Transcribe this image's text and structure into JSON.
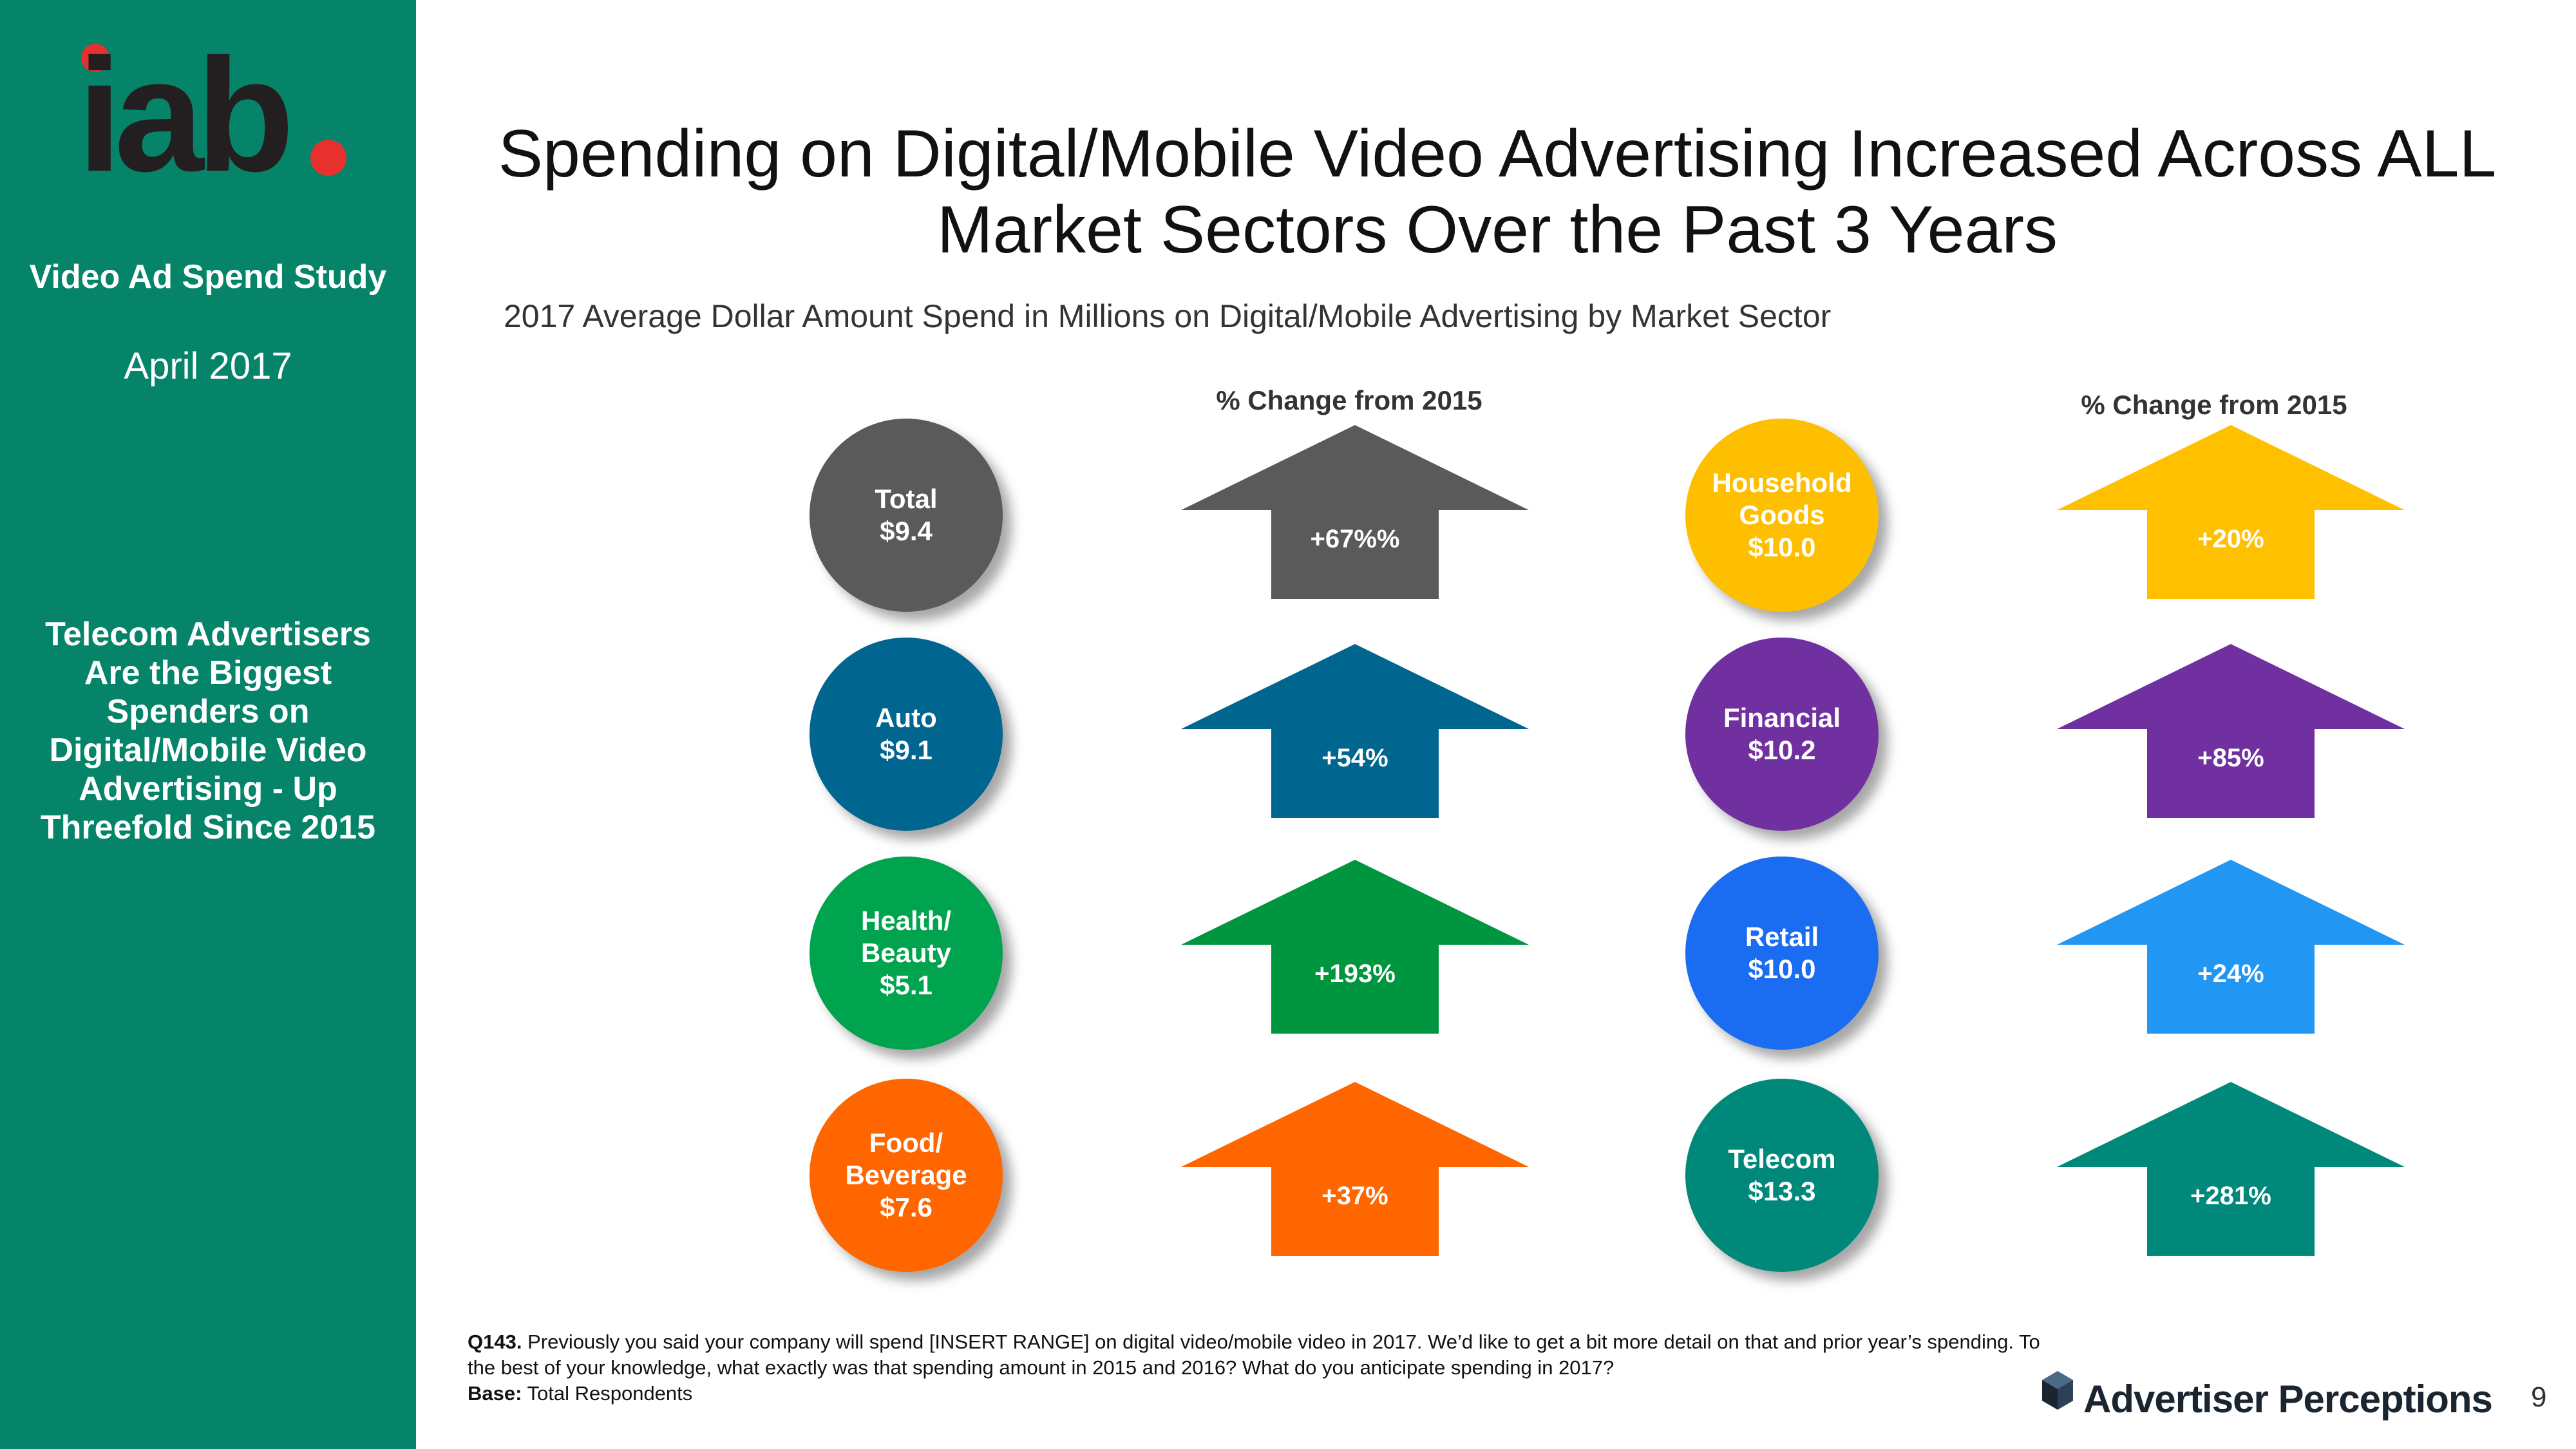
{
  "sidebar": {
    "logo_text": "iab.",
    "study": "Video Ad Spend Study",
    "date": "April 2017",
    "note": "Telecom Advertisers Are the Biggest Spenders on Digital/Mobile  Video Advertising - Up Threefold Since 2015"
  },
  "title": "Spending on Digital/Mobile Video Advertising Increased Across ALL Market Sectors Over the Past 3 Years",
  "chart_data": {
    "type": "table",
    "title": "Spending on Digital/Mobile Video Advertising Increased Across ALL Market Sectors Over the Past 3 Years",
    "subtitle": "2017 Average Dollar Amount Spend in Millions on Digital/Mobile Advertising by Market Sector",
    "change_header": "% Change from 2015",
    "sectors": [
      {
        "label": "Total\n$9.4",
        "name": "Total",
        "value": 9.4,
        "change_label": "+67%%",
        "change": 67,
        "color": "#5a5a5a"
      },
      {
        "label": "Auto\n$9.1",
        "name": "Auto",
        "value": 9.1,
        "change_label": "+54%",
        "change": 54,
        "color": "#00658f"
      },
      {
        "label": "Health/\nBeauty\n$5.1",
        "name": "Health/ Beauty",
        "value": 5.1,
        "change_label": "+193%",
        "change": 193,
        "color": "#00a44e"
      },
      {
        "label": "Food/\nBeverage\n$7.6",
        "name": "Food/ Beverage",
        "value": 7.6,
        "change_label": "+37%",
        "change": 37,
        "color": "#ff6600"
      },
      {
        "label": "Household\nGoods\n$10.0",
        "name": "Household Goods",
        "value": 10.0,
        "change_label": "+20%",
        "change": 20,
        "color": "#fdbf00"
      },
      {
        "label": "Financial\n$10.2",
        "name": "Financial",
        "value": 10.2,
        "change_label": "+85%",
        "change": 85,
        "color": "#7030a0"
      },
      {
        "label": "Retail\n$10.0",
        "name": "Retail",
        "value": 10.0,
        "change_label": "+24%",
        "change": 24,
        "color": "#1a6cf0"
      },
      {
        "label": "Telecom\n$13.3",
        "name": "Telecom",
        "value": 13.3,
        "change_label": "+281%",
        "change": 281,
        "color": "#00897b"
      }
    ],
    "arrow_colors": [
      "#5a5a5a",
      "#00658f",
      "#00953f",
      "#ff6600",
      "#ffc000",
      "#7030a0",
      "#2196f3",
      "#00897b"
    ]
  },
  "footnote": {
    "q_label": "Q143.",
    "q_text": "Previously you said your company will spend [INSERT RANGE] on digital video/mobile video in 2017.  We’d like to get a bit more detail on that and prior year’s spending.  To the best of your knowledge, what exactly was that spending amount in 2015 and 2016? What do you anticipate spending in 2017?",
    "base_label": "Base:",
    "base_text": "Total Respondents"
  },
  "brand": "Advertiser Perceptions",
  "page_number": "9"
}
